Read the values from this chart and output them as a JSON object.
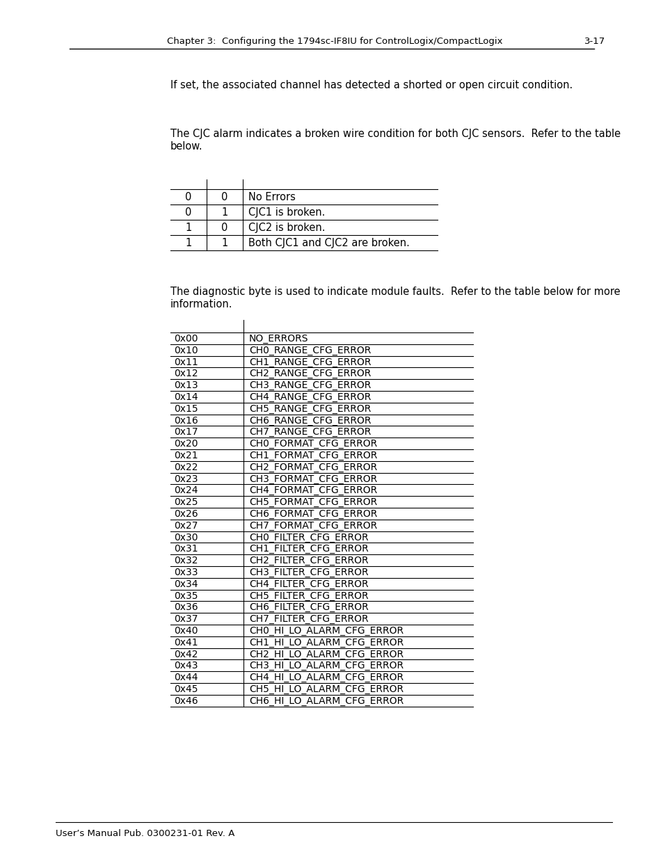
{
  "page_bg": "#ffffff",
  "header_text": "Chapter 3:  Configuring the 1794sc-IF8IU for ControlLogix/CompactLogix",
  "header_right": "3-17",
  "footer_text": "User’s Manual Pub. 0300231-01 Rev. A",
  "para1": "If set, the associated channel has detected a shorted or open circuit condition.",
  "para2_line1": "The CJC alarm indicates a broken wire condition for both CJC sensors.  Refer to the table",
  "para2_line2": "below.",
  "para3_line1": "The diagnostic byte is used to indicate module faults.  Refer to the table below for more",
  "para3_line2": "information.",
  "table1_rows": [
    [
      "0",
      "0",
      "No Errors"
    ],
    [
      "0",
      "1",
      "CJC1 is broken."
    ],
    [
      "1",
      "0",
      "CJC2 is broken."
    ],
    [
      "1",
      "1",
      "Both CJC1 and CJC2 are broken."
    ]
  ],
  "table2_rows": [
    [
      "0x00",
      "NO_ERRORS"
    ],
    [
      "0x10",
      "CH0_RANGE_CFG_ERROR"
    ],
    [
      "0x11",
      "CH1_RANGE_CFG_ERROR"
    ],
    [
      "0x12",
      "CH2_RANGE_CFG_ERROR"
    ],
    [
      "0x13",
      "CH3_RANGE_CFG_ERROR"
    ],
    [
      "0x14",
      "CH4_RANGE_CFG_ERROR"
    ],
    [
      "0x15",
      "CH5_RANGE_CFG_ERROR"
    ],
    [
      "0x16",
      "CH6_RANGE_CFG_ERROR"
    ],
    [
      "0x17",
      "CH7_RANGE_CFG_ERROR"
    ],
    [
      "0x20",
      "CH0_FORMAT_CFG_ERROR"
    ],
    [
      "0x21",
      "CH1_FORMAT_CFG_ERROR"
    ],
    [
      "0x22",
      "CH2_FORMAT_CFG_ERROR"
    ],
    [
      "0x23",
      "CH3_FORMAT_CFG_ERROR"
    ],
    [
      "0x24",
      "CH4_FORMAT_CFG_ERROR"
    ],
    [
      "0x25",
      "CH5_FORMAT_CFG_ERROR"
    ],
    [
      "0x26",
      "CH6_FORMAT_CFG_ERROR"
    ],
    [
      "0x27",
      "CH7_FORMAT_CFG_ERROR"
    ],
    [
      "0x30",
      "CH0_FILTER_CFG_ERROR"
    ],
    [
      "0x31",
      "CH1_FILTER_CFG_ERROR"
    ],
    [
      "0x32",
      "CH2_FILTER_CFG_ERROR"
    ],
    [
      "0x33",
      "CH3_FILTER_CFG_ERROR"
    ],
    [
      "0x34",
      "CH4_FILTER_CFG_ERROR"
    ],
    [
      "0x35",
      "CH5_FILTER_CFG_ERROR"
    ],
    [
      "0x36",
      "CH6_FILTER_CFG_ERROR"
    ],
    [
      "0x37",
      "CH7_FILTER_CFG_ERROR"
    ],
    [
      "0x40",
      "CH0_HI_LO_ALARM_CFG_ERROR"
    ],
    [
      "0x41",
      "CH1_HI_LO_ALARM_CFG_ERROR"
    ],
    [
      "0x42",
      "CH2_HI_LO_ALARM_CFG_ERROR"
    ],
    [
      "0x43",
      "CH3_HI_LO_ALARM_CFG_ERROR"
    ],
    [
      "0x44",
      "CH4_HI_LO_ALARM_CFG_ERROR"
    ],
    [
      "0x45",
      "CH5_HI_LO_ALARM_CFG_ERROR"
    ],
    [
      "0x46",
      "CH6_HI_LO_ALARM_CFG_ERROR"
    ]
  ]
}
